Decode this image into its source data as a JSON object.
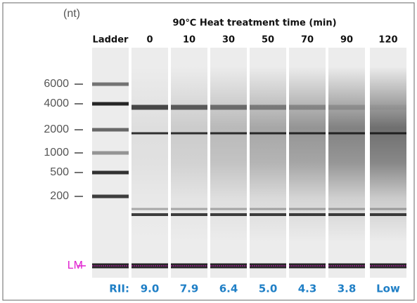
{
  "unit_label": "(nt)",
  "title": "90℃ Heat treatment time (min)",
  "lanes": [
    "Ladder",
    "0",
    "10",
    "30",
    "50",
    "70",
    "90",
    "120"
  ],
  "markers": [
    "6000",
    "4000",
    "2000",
    "1000",
    "500",
    "200"
  ],
  "lower_marker": "LM",
  "rin": {
    "label": "RII:",
    "values": [
      "9.0",
      "7.9",
      "6.4",
      "5.0",
      "4.3",
      "3.8",
      "Low"
    ]
  }
}
